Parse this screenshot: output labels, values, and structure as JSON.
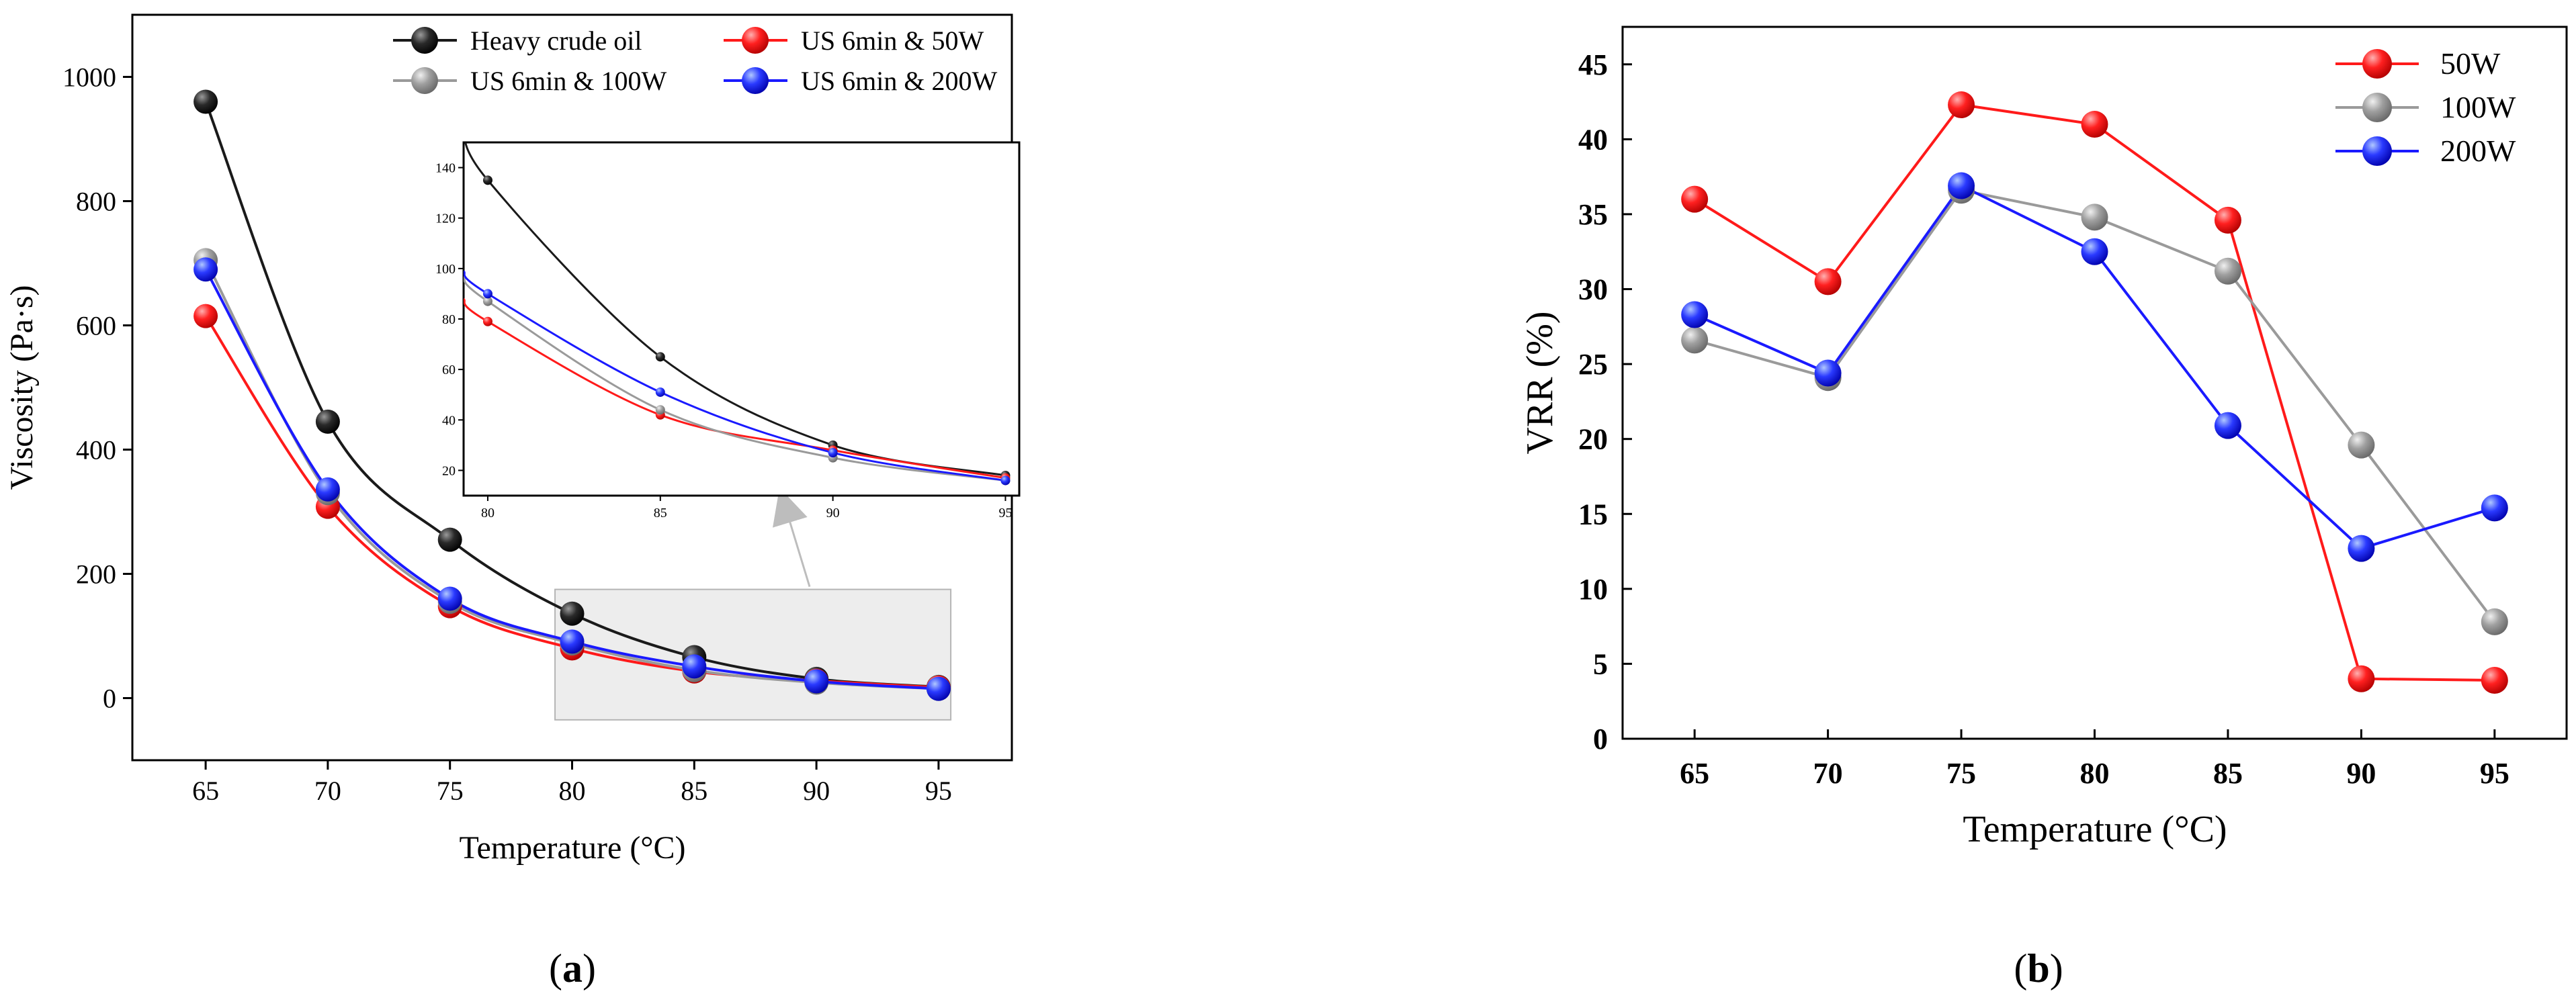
{
  "chart_data": [
    {
      "id": "a",
      "type": "line",
      "panel_label": "(a)",
      "panel_label_parts": [
        "(",
        "a",
        ")"
      ],
      "xlabel": "Temperature (°C)",
      "ylabel": "Viscosity (Pa·s)",
      "x": [
        65,
        70,
        75,
        80,
        85,
        90,
        95
      ],
      "xlim": [
        62,
        98
      ],
      "ylim": [
        -100,
        1100
      ],
      "xticks": [
        "65",
        "70",
        "75",
        "80",
        "85",
        "90",
        "95"
      ],
      "yticks": [
        "0",
        "200",
        "400",
        "600",
        "800",
        "1000"
      ],
      "ytick_values": [
        0,
        200,
        400,
        600,
        800,
        1000
      ],
      "legend_position": "top-right",
      "series": [
        {
          "name": "Heavy crude oil",
          "color": "#1a1a1a",
          "values": [
            960,
            445,
            255,
            136,
            66,
            31,
            18
          ]
        },
        {
          "name": "US 6min & 50W",
          "color": "#ff1a1a",
          "values": [
            615,
            308,
            148,
            80,
            43,
            28,
            17
          ]
        },
        {
          "name": "US 6min & 100W",
          "color": "#9a9a9a",
          "values": [
            705,
            330,
            155,
            88,
            45,
            25,
            15
          ]
        },
        {
          "name": "US 6min & 200W",
          "color": "#1a1aff",
          "values": [
            690,
            336,
            160,
            91,
            51,
            27,
            15
          ]
        }
      ],
      "inset": {
        "x": [
          80,
          85,
          90,
          95
        ],
        "xlim": [
          79.3,
          95.4
        ],
        "ylim": [
          10,
          150
        ],
        "xticks": [
          "80",
          "85",
          "90",
          "95"
        ],
        "yticks": [
          "20",
          "40",
          "60",
          "80",
          "100",
          "120",
          "140"
        ],
        "ytick_values": [
          20,
          40,
          60,
          80,
          100,
          120,
          140
        ],
        "series": [
          {
            "name": "Heavy crude oil",
            "color": "#1a1a1a",
            "values": [
              135,
              65,
              30,
              18
            ]
          },
          {
            "name": "US 6min & 50W",
            "color": "#ff1a1a",
            "values": [
              79,
              42,
              28,
              17
            ]
          },
          {
            "name": "US 6min & 100W",
            "color": "#9a9a9a",
            "values": [
              87,
              44,
              25,
              16
            ]
          },
          {
            "name": "US 6min & 200W",
            "color": "#1a1aff",
            "values": [
              90,
              51,
              27,
              16
            ]
          }
        ],
        "left_edge_values": [
          158,
          88,
          97,
          99
        ],
        "zoom_region_x": [
          79.3,
          95.5
        ],
        "zoom_region_y": [
          -35,
          175
        ]
      }
    },
    {
      "id": "b",
      "type": "line",
      "panel_label": "(b)",
      "panel_label_parts": [
        "(",
        "b",
        ")"
      ],
      "xlabel": "Temperature (°C)",
      "ylabel": "VRR (%)",
      "x": [
        65,
        70,
        75,
        80,
        85,
        90,
        95
      ],
      "xlim": [
        62.3,
        97.7
      ],
      "ylim": [
        0,
        47.5
      ],
      "xticks": [
        "65",
        "70",
        "75",
        "80",
        "85",
        "90",
        "95"
      ],
      "yticks": [
        "0",
        "5",
        "10",
        "15",
        "20",
        "25",
        "30",
        "35",
        "40",
        "45"
      ],
      "ytick_values": [
        0,
        5,
        10,
        15,
        20,
        25,
        30,
        35,
        40,
        45
      ],
      "legend_position": "top-right",
      "series": [
        {
          "name": "50W",
          "color": "#ff1a1a",
          "values": [
            36,
            30.5,
            42.3,
            41,
            34.6,
            4,
            3.9
          ]
        },
        {
          "name": "100W",
          "color": "#9a9a9a",
          "values": [
            26.6,
            24.1,
            36.6,
            34.8,
            31.2,
            19.6,
            7.8
          ]
        },
        {
          "name": "200W",
          "color": "#1a1aff",
          "values": [
            28.3,
            24.4,
            36.9,
            32.5,
            20.9,
            12.7,
            15.4
          ]
        }
      ]
    }
  ]
}
